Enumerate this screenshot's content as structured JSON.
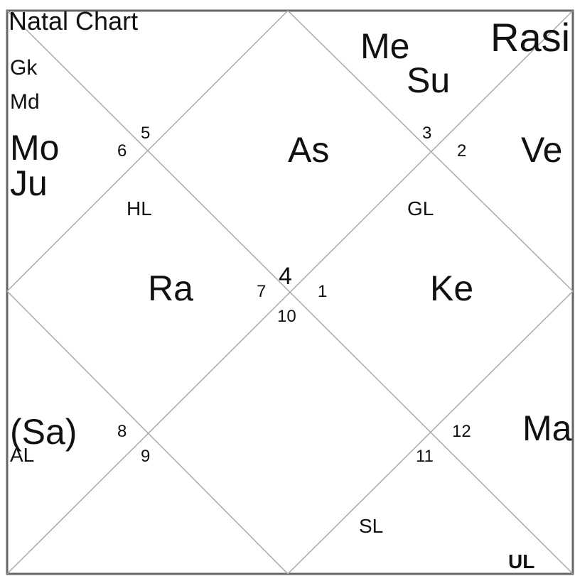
{
  "title": "Natal Chart",
  "chart_name": "Rasi",
  "house_numbers": [
    "1",
    "2",
    "3",
    "4",
    "5",
    "6",
    "7",
    "8",
    "9",
    "10",
    "11",
    "12"
  ],
  "labels": [
    "Me",
    "Su",
    "Gk",
    "Md",
    "Mo",
    "Ju",
    "As",
    "Ve",
    "HL",
    "GL",
    "Ra",
    "Ke",
    "(Sa)",
    "AL",
    "Ma",
    "SL",
    "UL"
  ]
}
